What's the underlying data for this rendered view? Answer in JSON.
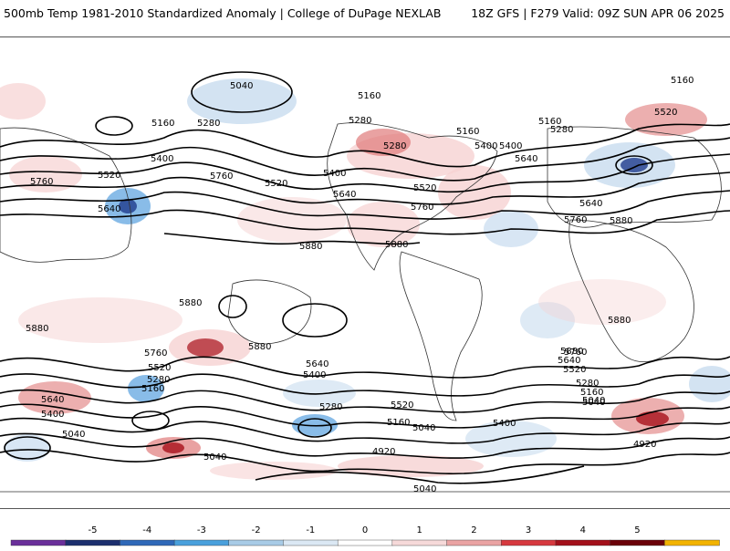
{
  "header": {
    "left_title": "500mb Temp 1981-2010 Standardized Anomaly | College of DuPage NEXLAB",
    "right_title": "18Z GFS | F279 Valid: 09Z SUN APR 06 2025"
  },
  "map": {
    "contour_labels": [
      "5040",
      "5160",
      "5160",
      "5160",
      "5280",
      "5280",
      "5400",
      "5400",
      "5520",
      "5520",
      "5640",
      "5640",
      "5760",
      "5760",
      "5880",
      "5880",
      "5160",
      "5280",
      "5400",
      "5520",
      "5640",
      "5760",
      "5880",
      "5160",
      "5280",
      "5400",
      "5520",
      "5640",
      "5760",
      "5880",
      "5880",
      "5880",
      "5880",
      "5760",
      "5880",
      "5640",
      "5520",
      "5280",
      "5160",
      "5400",
      "5040",
      "5640",
      "5400",
      "5040",
      "5040",
      "5280",
      "5520",
      "5400",
      "5160",
      "5040",
      "4920",
      "5040",
      "5760",
      "5640",
      "5520",
      "5280",
      "5160",
      "5040",
      "4920"
    ],
    "colors": {
      "strong_negative": "#1f3b8c",
      "moderate_negative": "#3a8fd8",
      "weak_negative": "#c8dcef",
      "weak_positive": "#f6d2d2",
      "moderate_positive": "#e07a7a",
      "strong_positive": "#a8101a"
    }
  },
  "colorbar": {
    "ticks": [
      "-5",
      "-4",
      "-3",
      "-2",
      "-1",
      "0",
      "1",
      "2",
      "3",
      "4",
      "5"
    ],
    "colors": [
      "#6a2f9a",
      "#1c2f6e",
      "#2f68b8",
      "#4aa0dc",
      "#a8cbe6",
      "#dbe8f4",
      "#ffffff",
      "#f6d9d9",
      "#eaa3a3",
      "#d6393f",
      "#a3101a",
      "#6a0008",
      "#f2b300"
    ]
  }
}
